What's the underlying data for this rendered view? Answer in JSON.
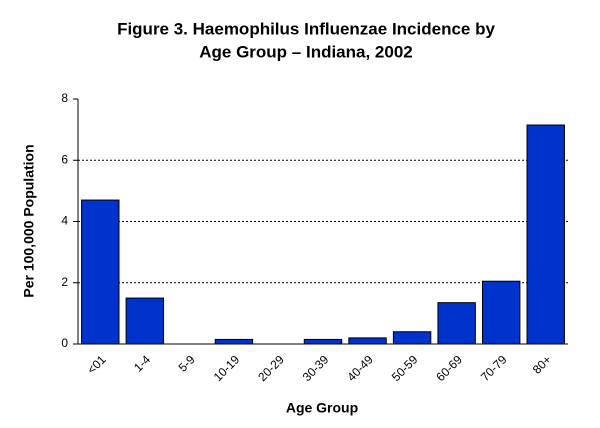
{
  "chart_data": {
    "type": "bar",
    "title": [
      "Figure 3.  Haemophilus Influenzae Incidence by",
      "Age Group – Indiana, 2002"
    ],
    "x_label": "Age Group",
    "y_label": "Per 100,000 Population",
    "categories": [
      "<01",
      "1-4",
      "5-9",
      "10-19",
      "20-29",
      "30-39",
      "40-49",
      "50-59",
      "60-69",
      "70-79",
      "80+"
    ],
    "values": [
      4.7,
      1.5,
      0,
      0.15,
      0,
      0.15,
      0.2,
      0.4,
      1.35,
      2.05,
      7.15
    ],
    "color": "#0033cc",
    "ylim": [
      0,
      8
    ],
    "yticks": [
      0,
      2,
      4,
      6,
      8
    ],
    "grid": true
  }
}
